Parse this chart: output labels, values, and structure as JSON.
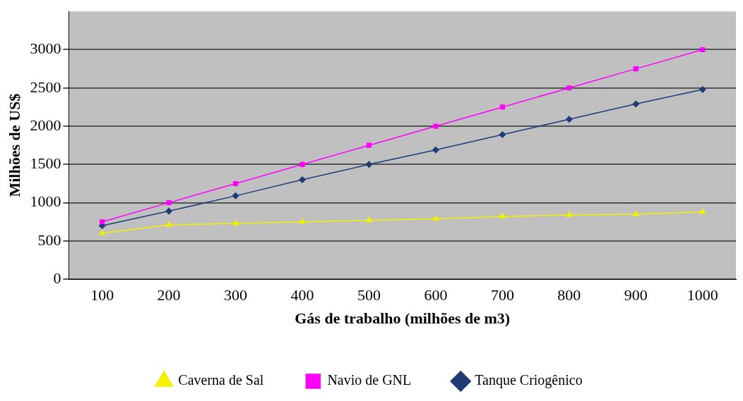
{
  "chart_data": {
    "type": "line",
    "xlabel": "Gás de trabalho (milhões de m3)",
    "ylabel": "Milhões de US$",
    "categories": [
      "100",
      "200",
      "300",
      "400",
      "500",
      "600",
      "700",
      "800",
      "900",
      "1000"
    ],
    "series": [
      {
        "name": "Caverna de Sal",
        "color": "#f2f200",
        "marker": "triangle",
        "values": [
          600,
          710,
          730,
          750,
          770,
          790,
          820,
          840,
          850,
          880
        ]
      },
      {
        "name": "Navio de GNL",
        "color": "#ff00ff",
        "marker": "square",
        "values": [
          750,
          1000,
          1250,
          1500,
          1750,
          2000,
          2250,
          2500,
          2750,
          3000
        ]
      },
      {
        "name": "Tanque Criogênico",
        "color": "#1f3c78",
        "marker": "diamond",
        "values": [
          700,
          890,
          1090,
          1300,
          1500,
          1690,
          1890,
          2090,
          2290,
          2480
        ]
      }
    ],
    "ylim": [
      0,
      3500
    ],
    "yticks": [
      0,
      500,
      1000,
      1500,
      2000,
      2500,
      3000
    ],
    "grid": "y",
    "legend": "bottom"
  }
}
